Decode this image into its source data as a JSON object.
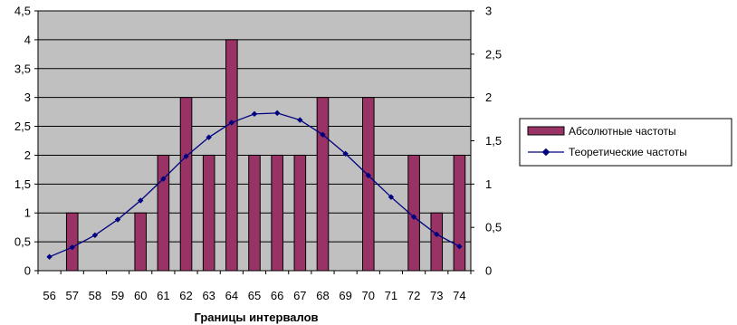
{
  "chart_data": {
    "type": "bar+line",
    "title": "",
    "xlabel": "Границы интервалов",
    "ylabel": "",
    "categories": [
      "56",
      "57",
      "58",
      "59",
      "60",
      "61",
      "62",
      "63",
      "64",
      "65",
      "66",
      "67",
      "68",
      "69",
      "70",
      "71",
      "72",
      "73",
      "74"
    ],
    "series": [
      {
        "name": "Абсолютные частоты",
        "type": "bar",
        "axis": "left",
        "values": [
          0,
          1,
          0,
          0,
          1,
          2,
          3,
          2,
          4,
          2,
          2,
          2,
          3,
          0,
          3,
          0,
          2,
          1,
          2
        ]
      },
      {
        "name": "Теоретические частоты",
        "type": "line",
        "axis": "right",
        "values": [
          0.16,
          0.27,
          0.41,
          0.59,
          0.81,
          1.06,
          1.32,
          1.54,
          1.71,
          1.81,
          1.82,
          1.74,
          1.57,
          1.35,
          1.1,
          0.85,
          0.62,
          0.42,
          0.28
        ]
      }
    ],
    "y_left": {
      "ylim": [
        0,
        4.5
      ],
      "ticks": [
        "0",
        "0,5",
        "1",
        "1,5",
        "2",
        "2,5",
        "3",
        "3,5",
        "4",
        "4,5"
      ]
    },
    "y_right": {
      "ylim": [
        0,
        3
      ],
      "ticks": [
        "0",
        "0,5",
        "1",
        "1,5",
        "2",
        "2,5",
        "3"
      ]
    },
    "grid": true,
    "legend_position": "right",
    "colors": {
      "plot_bg": "#c0c0c0",
      "bar_fill": "#993366",
      "line": "#000080",
      "gridline": "#000000"
    }
  }
}
